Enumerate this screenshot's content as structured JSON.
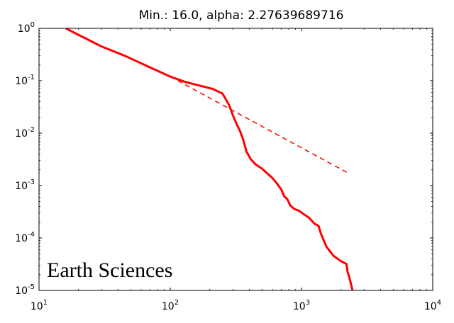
{
  "chart_data": {
    "type": "line",
    "title": "Min.: 16.0, alpha: 2.27639689716",
    "xlabel": "",
    "ylabel": "",
    "x_scale": "log",
    "y_scale": "log",
    "xlim": [
      10,
      10000
    ],
    "ylim": [
      1e-05,
      1
    ],
    "grid": false,
    "x_ticks": [
      {
        "base": "10",
        "exp": "1",
        "value": 10
      },
      {
        "base": "10",
        "exp": "2",
        "value": 100
      },
      {
        "base": "10",
        "exp": "3",
        "value": 1000
      },
      {
        "base": "10",
        "exp": "4",
        "value": 10000
      }
    ],
    "y_ticks": [
      {
        "base": "10",
        "exp": "0",
        "value": 1
      },
      {
        "base": "10",
        "exp": "-1",
        "value": 0.1
      },
      {
        "base": "10",
        "exp": "-2",
        "value": 0.01
      },
      {
        "base": "10",
        "exp": "-3",
        "value": 0.001
      },
      {
        "base": "10",
        "exp": "-4",
        "value": 0.0001
      },
      {
        "base": "10",
        "exp": "-5",
        "value": 1e-05
      }
    ],
    "annotation": "Earth Sciences",
    "series": [
      {
        "style": "solid",
        "color": "#ff0000",
        "points": [
          [
            16,
            1.0
          ],
          [
            20,
            0.75
          ],
          [
            30,
            0.45
          ],
          [
            45,
            0.3
          ],
          [
            70,
            0.18
          ],
          [
            100,
            0.12
          ],
          [
            130,
            0.095
          ],
          [
            170,
            0.08
          ],
          [
            210,
            0.07
          ],
          [
            250,
            0.057
          ],
          [
            280,
            0.035
          ],
          [
            300,
            0.022
          ],
          [
            320,
            0.015
          ],
          [
            340,
            0.011
          ],
          [
            360,
            0.0075
          ],
          [
            380,
            0.0045
          ],
          [
            410,
            0.0032
          ],
          [
            450,
            0.0025
          ],
          [
            500,
            0.0021
          ],
          [
            550,
            0.0017
          ],
          [
            600,
            0.0014
          ],
          [
            650,
            0.0011
          ],
          [
            700,
            0.00085
          ],
          [
            740,
            0.00062
          ],
          [
            780,
            0.00055
          ],
          [
            820,
            0.00042
          ],
          [
            880,
            0.00036
          ],
          [
            960,
            0.00033
          ],
          [
            1050,
            0.00028
          ],
          [
            1150,
            0.00024
          ],
          [
            1250,
            0.00019
          ],
          [
            1350,
            0.00017
          ],
          [
            1400,
            0.000125
          ],
          [
            1550,
            6.8e-05
          ],
          [
            1750,
            4.6e-05
          ],
          [
            2000,
            3.6e-05
          ],
          [
            2200,
            3.2e-05
          ],
          [
            2250,
            2.2e-05
          ],
          [
            2300,
            1.9e-05
          ],
          [
            2450,
            1e-05
          ]
        ]
      },
      {
        "style": "dashed",
        "color": "#ff0000",
        "points": [
          [
            100,
            0.12
          ],
          [
            2300,
            0.0017
          ]
        ]
      }
    ]
  }
}
